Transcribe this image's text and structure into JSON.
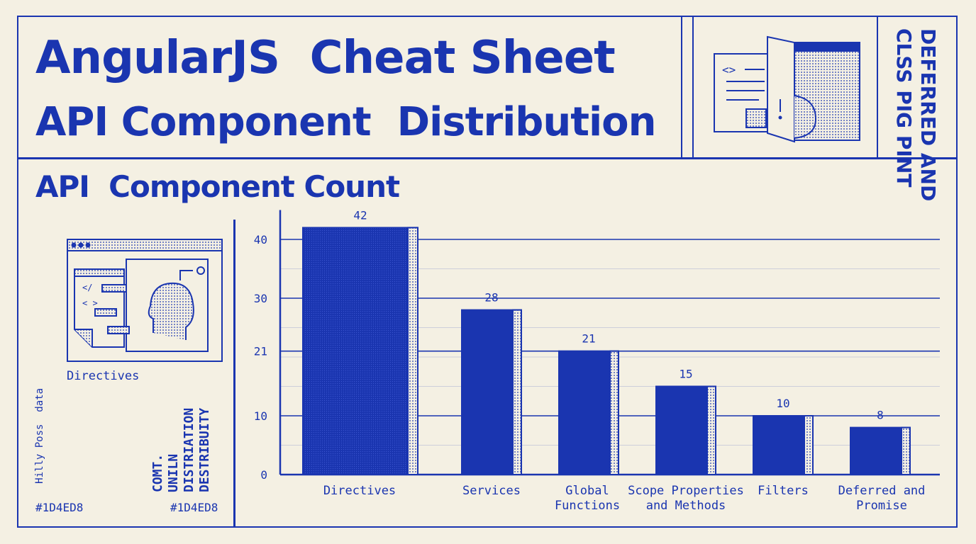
{
  "header": {
    "title_line1": "AngularJS  Cheat Sheet",
    "title_line2": "API Component  Distribution"
  },
  "side_title": {
    "line1": "DEFERRED AND",
    "line2": "CLSS PIG PINT"
  },
  "left_panel": {
    "caption": "Directives",
    "note": "Hilly Poss  data",
    "labels": [
      "COMT.",
      "UNILN",
      "DISTRIATION",
      "DESTRIBUITY"
    ],
    "hex_left": "#1D4ED8",
    "hex_right": "#1D4ED8",
    "icon": "browser-window-with-brain-and-code-icon"
  },
  "top_icon": "code-document-with-door-icon",
  "colors": {
    "accent": "#1a35b0",
    "background": "#f4f0e3"
  },
  "chart_data": {
    "type": "bar",
    "title": "API  Component Count",
    "categories": [
      "Directives",
      "Services",
      "Global\nFunctions",
      "Scope Properties\nand Methods",
      "Filters",
      "Deferred and\nPromise"
    ],
    "values": [
      42,
      28,
      21,
      15,
      10,
      8
    ],
    "yticks": [
      0,
      10,
      21,
      30,
      40
    ],
    "ylim": [
      0,
      45
    ],
    "grid": true,
    "xlabel": "",
    "ylabel": ""
  }
}
